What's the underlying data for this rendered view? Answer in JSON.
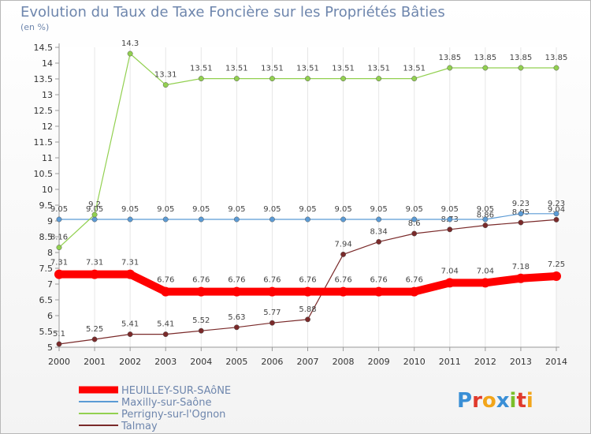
{
  "header": {
    "title": "Evolution du Taux de Taxe Foncière sur les Propriétés Bâties",
    "unit": "(en %)"
  },
  "logo": {
    "text": "Proxiti",
    "letters": [
      "P",
      "r",
      "o",
      "x",
      "i",
      "t",
      "i"
    ],
    "colors": [
      "#3a8fd6",
      "#e03a2c",
      "#f2a51a",
      "#3a8fd6",
      "#7bbf2a",
      "#e03a2c",
      "#f2a51a"
    ]
  },
  "chart_data": {
    "type": "line",
    "title": "Evolution du Taux de Taxe Foncière sur les Propriétés Bâties",
    "ylabel": "(en %)",
    "x": [
      "2000",
      "2001",
      "2002",
      "2003",
      "2004",
      "2005",
      "2006",
      "2007",
      "2008",
      "2009",
      "2010",
      "2011",
      "2012",
      "2013",
      "2014"
    ],
    "ylim": [
      5,
      14.5
    ],
    "yticks": [
      "5",
      "5.5",
      "6",
      "6.5",
      "7",
      "7.5",
      "8",
      "8.5",
      "9",
      "9.5",
      "10",
      "10.5",
      "11",
      "11.5",
      "12",
      "12.5",
      "13",
      "13.5",
      "14",
      "14.5"
    ],
    "series": [
      {
        "name": "Talmay",
        "color": "#7a2a2a",
        "values": [
          5.1,
          5.25,
          5.41,
          5.41,
          5.52,
          5.63,
          5.77,
          5.88,
          7.94,
          8.34,
          8.6,
          8.73,
          8.86,
          8.95,
          9.04
        ],
        "labels": [
          "5.1",
          "5.25",
          "5.41",
          "5.41",
          "5.52",
          "5.63",
          "5.77",
          "5.88",
          "7.94",
          "8.34",
          "8.6",
          "8.73",
          "8.86",
          "8.95",
          "9.04"
        ]
      },
      {
        "name": "Maxilly-sur-Saône",
        "color": "#5b9bd5",
        "values": [
          9.05,
          9.05,
          9.05,
          9.05,
          9.05,
          9.05,
          9.05,
          9.05,
          9.05,
          9.05,
          9.05,
          9.05,
          9.05,
          9.23,
          9.23
        ],
        "labels": [
          "9.05",
          "9.05",
          "9.05",
          "9.05",
          "9.05",
          "9.05",
          "9.05",
          "9.05",
          "9.05",
          "9.05",
          "9.05",
          "9.05",
          "9.05",
          "9.23",
          "9.23"
        ]
      },
      {
        "name": "Perrigny-sur-l'Ognon",
        "color": "#92d050",
        "values": [
          8.16,
          9.2,
          14.3,
          13.31,
          13.51,
          13.51,
          13.51,
          13.51,
          13.51,
          13.51,
          13.51,
          13.85,
          13.85,
          13.85,
          13.85
        ],
        "labels": [
          "8.16",
          "9.2",
          "14.3",
          "13.31",
          "13.51",
          "13.51",
          "13.51",
          "13.51",
          "13.51",
          "13.51",
          "13.51",
          "13.85",
          "13.85",
          "13.85",
          "13.85"
        ]
      },
      {
        "name": "HEUILLEY-SUR-SAôNE",
        "color": "#ff0000",
        "values": [
          7.31,
          7.31,
          7.31,
          6.76,
          6.76,
          6.76,
          6.76,
          6.76,
          6.76,
          6.76,
          6.76,
          7.04,
          7.04,
          7.18,
          7.25
        ],
        "labels": [
          "7.31",
          "7.31",
          "7.31",
          "6.76",
          "6.76",
          "6.76",
          "6.76",
          "6.76",
          "6.76",
          "6.76",
          "6.76",
          "7.04",
          "7.04",
          "7.18",
          "7.25"
        ]
      }
    ],
    "legend": [
      "HEUILLEY-SUR-SAôNE",
      "Maxilly-sur-Saône",
      "Perrigny-sur-l'Ognon",
      "Talmay"
    ]
  }
}
